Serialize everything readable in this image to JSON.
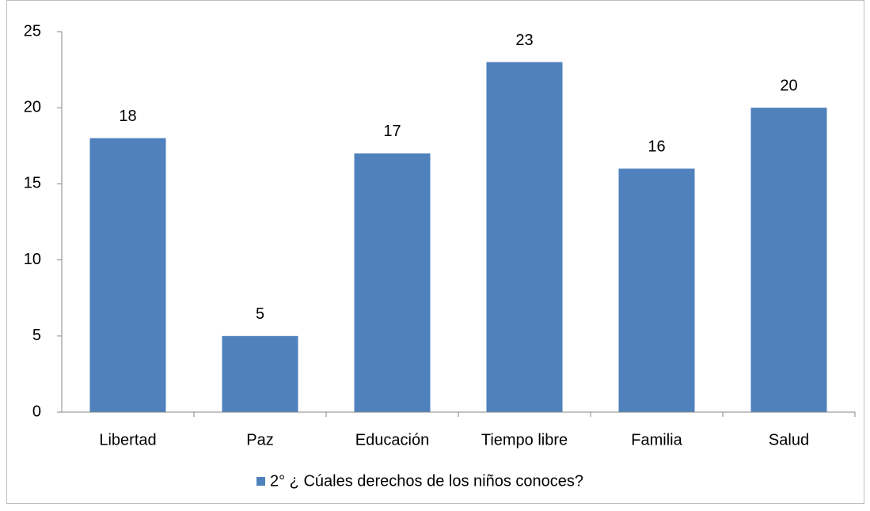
{
  "chart_data": {
    "type": "bar",
    "categories": [
      "Libertad",
      "Paz",
      "Educación",
      "Tiempo libre",
      "Familia",
      "Salud"
    ],
    "series": [
      {
        "name": "2° ¿ Cúales derechos de los niños conoces?",
        "color": "#4f81bd",
        "values": [
          18,
          5,
          17,
          23,
          16,
          20
        ]
      }
    ],
    "ylim": [
      0,
      25
    ],
    "yticks": [
      0,
      5,
      10,
      15,
      20,
      25
    ],
    "grid": false,
    "legend": "bottom",
    "data_labels": true
  }
}
